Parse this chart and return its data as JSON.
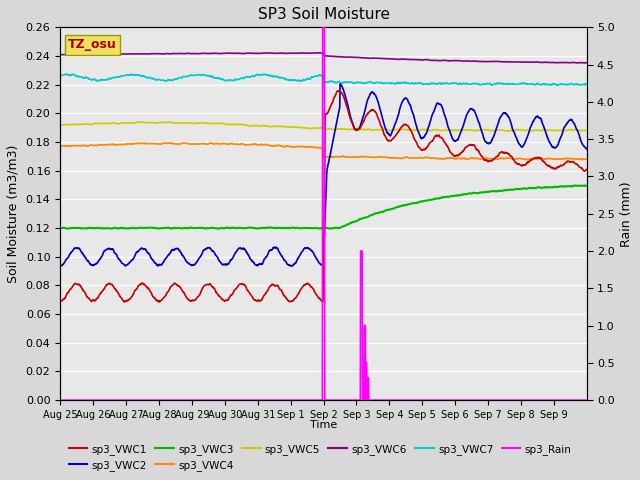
{
  "title": "SP3 Soil Moisture",
  "xlabel": "Time",
  "ylabel_left": "Soil Moisture (m3/m3)",
  "ylabel_right": "Rain (mm)",
  "ylim_left": [
    0.0,
    0.26
  ],
  "ylim_right": [
    0.0,
    5.0
  ],
  "xlim_days": [
    0,
    16
  ],
  "x_tick_labels": [
    "Aug 25",
    "Aug 26",
    "Aug 27",
    "Aug 28",
    "Aug 29",
    "Aug 30",
    "Aug 31",
    "Sep 1",
    "Sep 2",
    "Sep 3",
    "Sep 4",
    "Sep 5",
    "Sep 6",
    "Sep 7",
    "Sep 8",
    "Sep 9"
  ],
  "figure_bg": "#d8d8d8",
  "axes_bg": "#e8e8e8",
  "grid_color": "#ffffff",
  "tz_osu_box_color": "#f0e060",
  "tz_osu_text_color": "#aa0000",
  "series": {
    "sp3_VWC1": {
      "color": "#cc0000",
      "lw": 1.2
    },
    "sp3_VWC2": {
      "color": "#0000cc",
      "lw": 1.2
    },
    "sp3_VWC3": {
      "color": "#00bb00",
      "lw": 1.5
    },
    "sp3_VWC4": {
      "color": "#ff8800",
      "lw": 1.2
    },
    "sp3_VWC5": {
      "color": "#cccc00",
      "lw": 1.2
    },
    "sp3_VWC6": {
      "color": "#880088",
      "lw": 1.2
    },
    "sp3_VWC7": {
      "color": "#00cccc",
      "lw": 1.2
    },
    "sp3_Rain": {
      "color": "#ff00ff",
      "lw": 1.2
    }
  }
}
